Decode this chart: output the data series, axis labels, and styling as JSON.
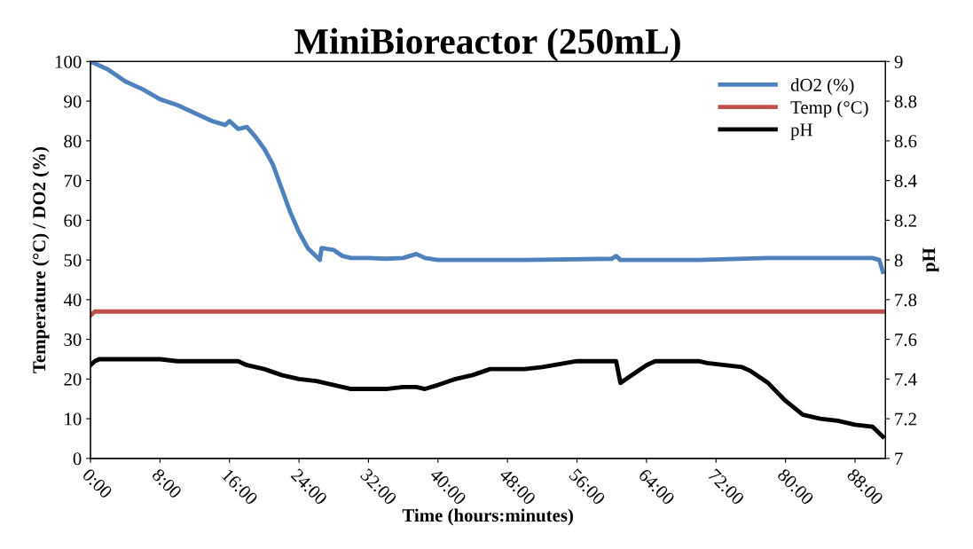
{
  "chart_data": {
    "type": "line",
    "title": "MiniBioreactor (250mL)",
    "xlabel": "Time (hours:minutes)",
    "ylabel": "Temperature (°C) / DO2 (%)",
    "y2label": "pH",
    "xlim": [
      0,
      91.5
    ],
    "xticks": [
      {
        "value": 0,
        "label": "0:00"
      },
      {
        "value": 8,
        "label": "8:00"
      },
      {
        "value": 16,
        "label": "16:00"
      },
      {
        "value": 24,
        "label": "24:00"
      },
      {
        "value": 32,
        "label": "32:00"
      },
      {
        "value": 40,
        "label": "40:00"
      },
      {
        "value": 48,
        "label": "48:00"
      },
      {
        "value": 56,
        "label": "56:00"
      },
      {
        "value": 64,
        "label": "64:00"
      },
      {
        "value": 72,
        "label": "72:00"
      },
      {
        "value": 80,
        "label": "80:00"
      },
      {
        "value": 88,
        "label": "88:00"
      }
    ],
    "ylim": [
      0,
      100
    ],
    "yticks": [
      0,
      10,
      20,
      30,
      40,
      50,
      60,
      70,
      80,
      90,
      100
    ],
    "y2lim": [
      7,
      9
    ],
    "y2ticks": [
      7,
      7.2,
      7.4,
      7.6,
      7.8,
      8,
      8.2,
      8.4,
      8.6,
      8.8,
      9
    ],
    "grid": false,
    "legend": "top right",
    "marker": "none",
    "line_style": "solid",
    "series": [
      {
        "name": "dO2 (%)",
        "color": "#4f81bd",
        "x": [
          0,
          2,
          4,
          6,
          8,
          10,
          12,
          14,
          15.5,
          16,
          17,
          18,
          19,
          20,
          21,
          22,
          23,
          24,
          25,
          26.4,
          26.6,
          28,
          29,
          30,
          32,
          34,
          36,
          37.5,
          38.5,
          40,
          50,
          60,
          60.5,
          61,
          70,
          78,
          85,
          90,
          90.8,
          91.2
        ],
        "values": [
          100,
          98,
          95,
          93,
          90.5,
          89,
          87,
          85,
          84,
          85,
          83,
          83.5,
          81,
          78,
          74,
          68,
          62,
          57,
          53,
          50,
          53,
          52.5,
          51,
          50.5,
          50.5,
          50.3,
          50.5,
          51.5,
          50.5,
          50,
          50,
          50.3,
          51,
          50,
          50,
          50.5,
          50.5,
          50.5,
          50,
          47
        ]
      },
      {
        "name": "Temp (°C)",
        "color": "#c0504d",
        "x": [
          0,
          0.5,
          91.2
        ],
        "values": [
          36,
          37,
          37
        ]
      },
      {
        "name": "pH",
        "color": "#000000",
        "axis": "y2",
        "x": [
          0,
          0.5,
          1,
          8,
          10,
          12,
          16,
          17,
          18,
          20,
          22,
          24,
          26,
          28,
          30,
          34,
          36,
          37.5,
          38.5,
          40,
          42,
          44,
          46,
          50,
          52,
          56,
          60.5,
          61,
          62,
          64,
          65,
          70,
          71,
          75,
          76,
          78,
          80,
          82,
          84,
          86,
          88,
          90,
          91.2
        ],
        "values": [
          7.47,
          7.49,
          7.5,
          7.5,
          7.49,
          7.49,
          7.49,
          7.49,
          7.47,
          7.45,
          7.42,
          7.4,
          7.39,
          7.37,
          7.35,
          7.35,
          7.36,
          7.36,
          7.35,
          7.37,
          7.4,
          7.42,
          7.45,
          7.45,
          7.46,
          7.49,
          7.49,
          7.38,
          7.41,
          7.47,
          7.49,
          7.49,
          7.48,
          7.46,
          7.44,
          7.38,
          7.29,
          7.22,
          7.2,
          7.19,
          7.17,
          7.16,
          7.11
        ]
      }
    ]
  }
}
